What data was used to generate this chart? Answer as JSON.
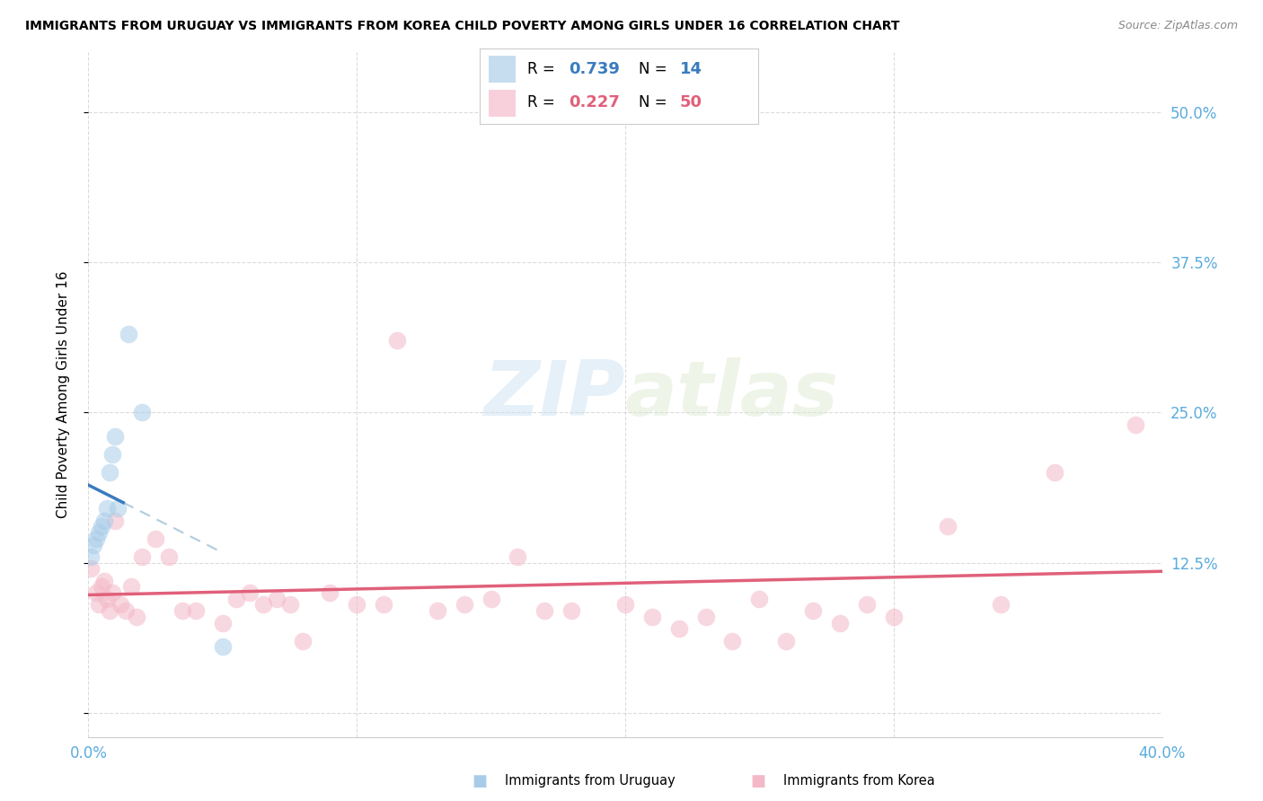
{
  "title": "IMMIGRANTS FROM URUGUAY VS IMMIGRANTS FROM KOREA CHILD POVERTY AMONG GIRLS UNDER 16 CORRELATION CHART",
  "source": "Source: ZipAtlas.com",
  "ylabel": "Child Poverty Among Girls Under 16",
  "xlim": [
    0.0,
    0.4
  ],
  "ylim": [
    -0.02,
    0.55
  ],
  "color_uruguay": "#a8cce8",
  "color_korea": "#f4b8c8",
  "color_trendline_uruguay": "#3a7bbf",
  "color_trendline_korea": "#e0607a",
  "color_dashed": "#b0ccdd",
  "watermark_zip": "ZIP",
  "watermark_atlas": "atlas",
  "background_color": "#ffffff",
  "grid_color": "#cccccc",
  "legend_r_uru": "0.739",
  "legend_n_uru": "14",
  "legend_r_kor": "0.227",
  "legend_n_kor": "50",
  "uruguay_x": [
    0.001,
    0.002,
    0.003,
    0.004,
    0.005,
    0.006,
    0.007,
    0.008,
    0.009,
    0.01,
    0.011,
    0.015,
    0.02,
    0.05
  ],
  "uruguay_y": [
    0.13,
    0.14,
    0.145,
    0.15,
    0.155,
    0.16,
    0.17,
    0.2,
    0.215,
    0.23,
    0.17,
    0.315,
    0.25,
    0.055
  ],
  "korea_x": [
    0.001,
    0.003,
    0.004,
    0.005,
    0.006,
    0.007,
    0.008,
    0.009,
    0.01,
    0.012,
    0.014,
    0.016,
    0.018,
    0.02,
    0.025,
    0.03,
    0.035,
    0.04,
    0.05,
    0.055,
    0.06,
    0.065,
    0.07,
    0.075,
    0.08,
    0.09,
    0.1,
    0.11,
    0.115,
    0.13,
    0.14,
    0.15,
    0.16,
    0.17,
    0.18,
    0.2,
    0.21,
    0.22,
    0.23,
    0.24,
    0.25,
    0.26,
    0.27,
    0.28,
    0.29,
    0.3,
    0.32,
    0.34,
    0.36,
    0.39
  ],
  "korea_y": [
    0.12,
    0.1,
    0.09,
    0.105,
    0.11,
    0.095,
    0.085,
    0.1,
    0.16,
    0.09,
    0.085,
    0.105,
    0.08,
    0.13,
    0.145,
    0.13,
    0.085,
    0.085,
    0.075,
    0.095,
    0.1,
    0.09,
    0.095,
    0.09,
    0.06,
    0.1,
    0.09,
    0.09,
    0.31,
    0.085,
    0.09,
    0.095,
    0.13,
    0.085,
    0.085,
    0.09,
    0.08,
    0.07,
    0.08,
    0.06,
    0.095,
    0.06,
    0.085,
    0.075,
    0.09,
    0.08,
    0.155,
    0.09,
    0.2,
    0.24
  ]
}
